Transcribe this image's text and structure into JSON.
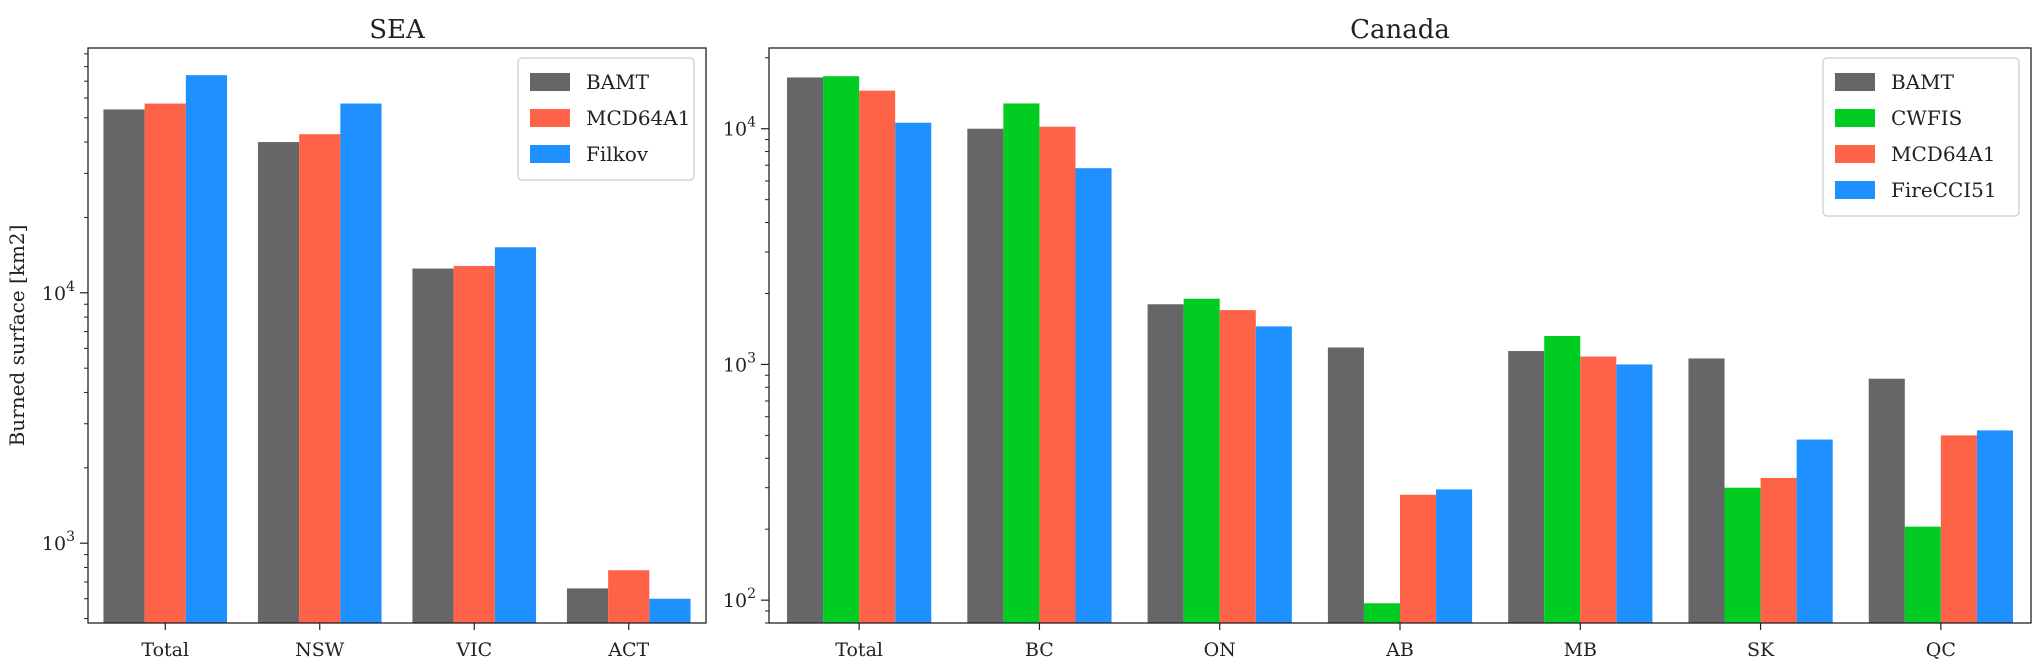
{
  "chart_data": [
    {
      "type": "bar",
      "title": "SEA",
      "xlabel": "",
      "ylabel": "Burned surface [km2]",
      "yscale": "log",
      "ylim": [
        480,
        95000
      ],
      "categories": [
        "Total",
        "NSW",
        "VIC",
        "ACT"
      ],
      "series": [
        {
          "name": "BAMT",
          "color": "#666666",
          "values": [
            54000,
            40000,
            12500,
            660
          ]
        },
        {
          "name": "MCD64A1",
          "color": "#ff6347",
          "values": [
            57000,
            43000,
            12800,
            780
          ]
        },
        {
          "name": "Filkov",
          "color": "#1e90ff",
          "values": [
            74000,
            57000,
            15200,
            600
          ]
        }
      ],
      "yticks": [
        {
          "value": 1000,
          "base": "10",
          "exp": "3"
        },
        {
          "value": 10000,
          "base": "10",
          "exp": "4"
        }
      ],
      "legend": "top-right",
      "grid": false
    },
    {
      "type": "bar",
      "title": "Canada",
      "xlabel": "",
      "ylabel": "",
      "yscale": "log",
      "ylim": [
        80,
        22000
      ],
      "categories": [
        "Total",
        "BC",
        "ON",
        "AB",
        "MB",
        "SK",
        "QC"
      ],
      "series": [
        {
          "name": "BAMT",
          "color": "#666666",
          "values": [
            16500,
            10000,
            1800,
            1180,
            1140,
            1060,
            870
          ]
        },
        {
          "name": "CWFIS",
          "color": "#00cc22",
          "values": [
            16700,
            12800,
            1900,
            97,
            1320,
            300,
            205
          ]
        },
        {
          "name": "MCD64A1",
          "color": "#ff6347",
          "values": [
            14500,
            10200,
            1700,
            280,
            1080,
            330,
            500
          ]
        },
        {
          "name": "FireCCI51",
          "color": "#1e90ff",
          "values": [
            10600,
            6800,
            1450,
            295,
            1000,
            480,
            525
          ]
        }
      ],
      "yticks": [
        {
          "value": 100,
          "base": "10",
          "exp": "2"
        },
        {
          "value": 1000,
          "base": "10",
          "exp": "3"
        },
        {
          "value": 10000,
          "base": "10",
          "exp": "4"
        }
      ],
      "legend": "top-right",
      "grid": false
    }
  ]
}
